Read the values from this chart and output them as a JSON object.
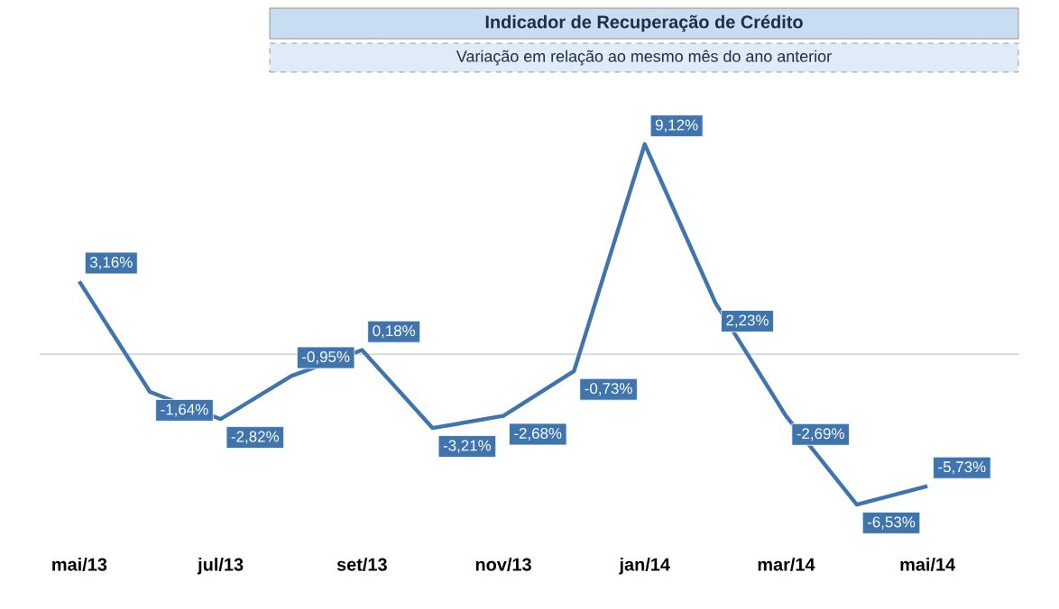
{
  "chart_data": {
    "type": "line",
    "title": "Indicador de Recuperação de Crédito",
    "subtitle": "Variação em relação ao mesmo mês do ano anterior",
    "categories": [
      "mai/13",
      null,
      "jul/13",
      null,
      "set/13",
      null,
      "nov/13",
      null,
      "jan/14",
      null,
      "mar/14",
      null,
      "mai/14"
    ],
    "values": [
      3.16,
      -1.64,
      -2.82,
      -0.95,
      0.18,
      -3.21,
      -2.68,
      -0.73,
      9.12,
      2.23,
      -2.69,
      -6.53,
      -5.73
    ],
    "value_labels": [
      "3,16%",
      "-1,64%",
      "-2,82%",
      "-0,95%",
      "0,18%",
      "-3,21%",
      "-2,68%",
      "-0,73%",
      "9,12%",
      "2,23%",
      "-2,69%",
      "-6,53%",
      "-5,73%"
    ],
    "color": "#3f74ad",
    "marker": "none",
    "line_style": "solid"
  }
}
